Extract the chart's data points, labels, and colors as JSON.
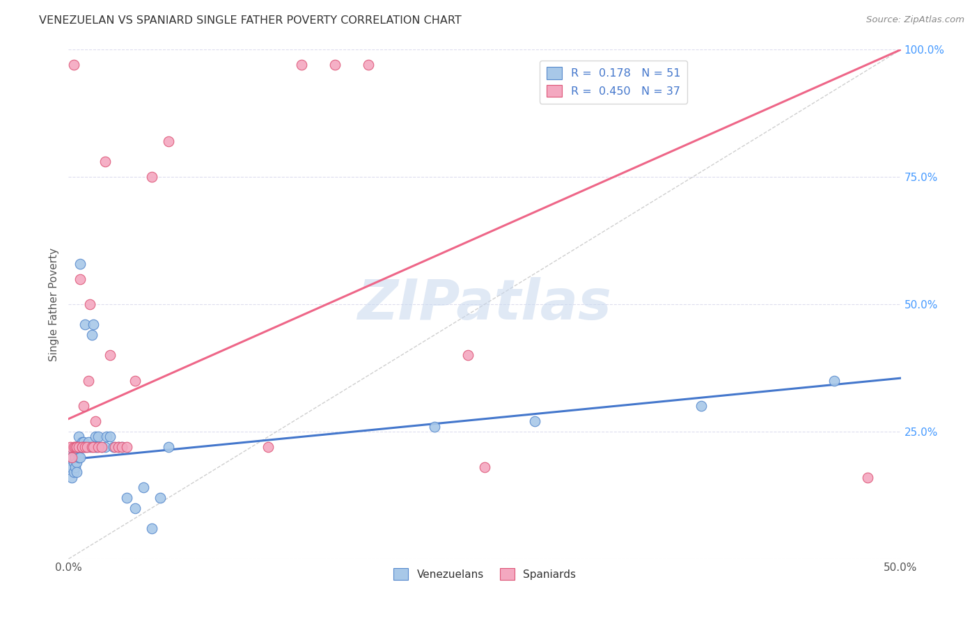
{
  "title": "VENEZUELAN VS SPANIARD SINGLE FATHER POVERTY CORRELATION CHART",
  "source": "Source: ZipAtlas.com",
  "ylabel": "Single Father Poverty",
  "legend_blue_R": "0.178",
  "legend_blue_N": "51",
  "legend_pink_R": "0.450",
  "legend_pink_N": "37",
  "blue_scatter_color": "#A8C8E8",
  "pink_scatter_color": "#F4A8C0",
  "blue_edge_color": "#5588CC",
  "pink_edge_color": "#DD5577",
  "blue_line_color": "#4477CC",
  "pink_line_color": "#EE6688",
  "diag_line_color": "#BBBBBB",
  "grid_color": "#DDDDEE",
  "background_color": "#FFFFFF",
  "watermark_text": "ZIPatlas",
  "watermark_color": "#C8D8EE",
  "venezuelan_x": [
    0.001,
    0.002,
    0.002,
    0.003,
    0.003,
    0.003,
    0.004,
    0.004,
    0.004,
    0.005,
    0.005,
    0.005,
    0.005,
    0.006,
    0.006,
    0.006,
    0.007,
    0.007,
    0.007,
    0.008,
    0.008,
    0.009,
    0.009,
    0.01,
    0.01,
    0.011,
    0.012,
    0.013,
    0.014,
    0.015,
    0.016,
    0.016,
    0.017,
    0.018,
    0.02,
    0.022,
    0.023,
    0.025,
    0.027,
    0.03,
    0.032,
    0.035,
    0.04,
    0.045,
    0.05,
    0.055,
    0.06,
    0.22,
    0.28,
    0.38,
    0.46
  ],
  "venezuelan_y": [
    0.18,
    0.2,
    0.16,
    0.21,
    0.19,
    0.17,
    0.22,
    0.2,
    0.18,
    0.22,
    0.21,
    0.19,
    0.17,
    0.22,
    0.24,
    0.2,
    0.58,
    0.22,
    0.2,
    0.23,
    0.22,
    0.23,
    0.22,
    0.22,
    0.46,
    0.22,
    0.23,
    0.22,
    0.44,
    0.46,
    0.24,
    0.22,
    0.22,
    0.24,
    0.22,
    0.22,
    0.24,
    0.24,
    0.22,
    0.22,
    0.22,
    0.12,
    0.1,
    0.14,
    0.06,
    0.12,
    0.22,
    0.26,
    0.27,
    0.3,
    0.35
  ],
  "spaniard_x": [
    0.001,
    0.002,
    0.003,
    0.003,
    0.004,
    0.005,
    0.005,
    0.006,
    0.007,
    0.008,
    0.008,
    0.009,
    0.01,
    0.011,
    0.012,
    0.013,
    0.014,
    0.015,
    0.016,
    0.018,
    0.02,
    0.022,
    0.025,
    0.028,
    0.03,
    0.032,
    0.035,
    0.04,
    0.05,
    0.06,
    0.12,
    0.14,
    0.16,
    0.18,
    0.24,
    0.25,
    0.48
  ],
  "spaniard_y": [
    0.22,
    0.2,
    0.22,
    0.97,
    0.22,
    0.22,
    0.22,
    0.22,
    0.55,
    0.22,
    0.22,
    0.3,
    0.22,
    0.22,
    0.35,
    0.5,
    0.22,
    0.22,
    0.27,
    0.22,
    0.22,
    0.78,
    0.4,
    0.22,
    0.22,
    0.22,
    0.22,
    0.35,
    0.75,
    0.82,
    0.22,
    0.97,
    0.97,
    0.97,
    0.4,
    0.18,
    0.16
  ],
  "blue_reg_intercept": 0.195,
  "blue_reg_slope": 0.32,
  "pink_reg_intercept": 0.275,
  "pink_reg_slope": 1.45,
  "xlim": [
    0.0,
    0.5
  ],
  "ylim": [
    0.0,
    1.0
  ],
  "xticks": [
    0.0,
    0.5
  ],
  "xticklabels": [
    "0.0%",
    "50.0%"
  ],
  "yticks_right": [
    0.25,
    0.5,
    0.75,
    1.0
  ],
  "yticklabels_right": [
    "25.0%",
    "50.0%",
    "75.0%",
    "100.0%"
  ]
}
